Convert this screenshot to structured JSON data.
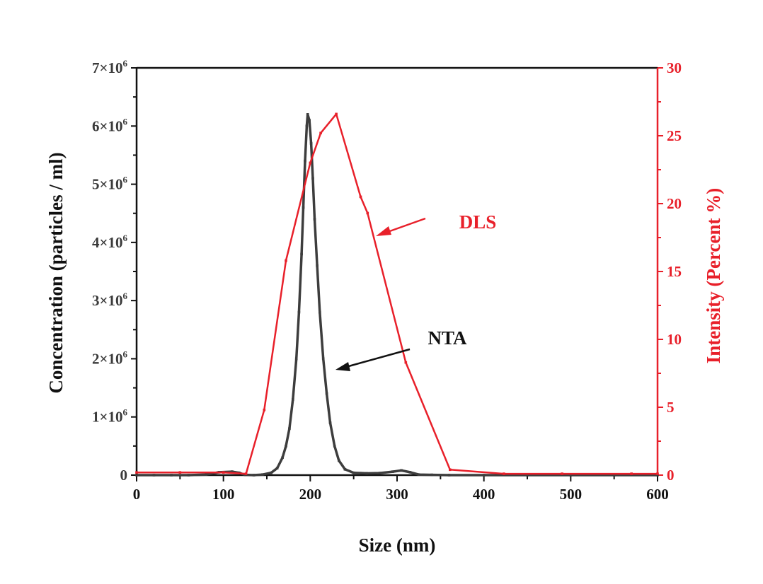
{
  "chart_data": {
    "type": "line",
    "title": "",
    "xlabel": "Size (nm)",
    "ylabel_left": "Concentration (particles / ml)",
    "ylabel_right": "Intensity (Percent %)",
    "xlim": [
      0,
      600
    ],
    "ylim_left": [
      0,
      7000000
    ],
    "ylim_right": [
      0,
      30
    ],
    "x_ticks": [
      "0",
      "100",
      "200",
      "300",
      "400",
      "500",
      "600"
    ],
    "y_left_ticks": [
      {
        "value": 0,
        "label": "0",
        "base": "",
        "exp": ""
      },
      {
        "value": 1000000,
        "label": "1×10^6",
        "base": "1×10",
        "exp": "6"
      },
      {
        "value": 2000000,
        "label": "2×10^6",
        "base": "2×10",
        "exp": "6"
      },
      {
        "value": 3000000,
        "label": "3×10^6",
        "base": "3×10",
        "exp": "6"
      },
      {
        "value": 4000000,
        "label": "4×10^6",
        "base": "4×10",
        "exp": "6"
      },
      {
        "value": 5000000,
        "label": "5×10^6",
        "base": "5×10",
        "exp": "6"
      },
      {
        "value": 6000000,
        "label": "6×10^6",
        "base": "6×10",
        "exp": "6"
      },
      {
        "value": 7000000,
        "label": "7×10^6",
        "base": "7×10",
        "exp": "6"
      }
    ],
    "y_right_ticks": [
      "0",
      "5",
      "10",
      "15",
      "20",
      "25",
      "30"
    ],
    "series": [
      {
        "name": "NTA",
        "axis": "left",
        "color": "#3d3d3d",
        "points": [
          [
            0,
            0
          ],
          [
            20,
            0
          ],
          [
            40,
            0
          ],
          [
            60,
            0
          ],
          [
            80,
            10000
          ],
          [
            95,
            50000
          ],
          [
            110,
            60000
          ],
          [
            118,
            40000
          ],
          [
            125,
            5000
          ],
          [
            135,
            0
          ],
          [
            145,
            10000
          ],
          [
            155,
            40000
          ],
          [
            162,
            120000
          ],
          [
            168,
            300000
          ],
          [
            172,
            500000
          ],
          [
            176,
            800000
          ],
          [
            180,
            1300000
          ],
          [
            184,
            2000000
          ],
          [
            187,
            2800000
          ],
          [
            190,
            3800000
          ],
          [
            192,
            4600000
          ],
          [
            194,
            5400000
          ],
          [
            196,
            6000000
          ],
          [
            197,
            6200000
          ],
          [
            199,
            6100000
          ],
          [
            201,
            5700000
          ],
          [
            203,
            5100000
          ],
          [
            205,
            4400000
          ],
          [
            208,
            3600000
          ],
          [
            211,
            2800000
          ],
          [
            215,
            2000000
          ],
          [
            219,
            1400000
          ],
          [
            223,
            900000
          ],
          [
            228,
            500000
          ],
          [
            233,
            250000
          ],
          [
            240,
            100000
          ],
          [
            250,
            40000
          ],
          [
            265,
            30000
          ],
          [
            280,
            35000
          ],
          [
            295,
            60000
          ],
          [
            305,
            80000
          ],
          [
            315,
            50000
          ],
          [
            325,
            10000
          ],
          [
            340,
            5000
          ],
          [
            360,
            0
          ],
          [
            400,
            0
          ],
          [
            450,
            0
          ],
          [
            500,
            0
          ],
          [
            550,
            0
          ],
          [
            600,
            0
          ]
        ]
      },
      {
        "name": "DLS",
        "axis": "right",
        "color": "#e8202a",
        "points": [
          [
            0,
            0.2
          ],
          [
            50,
            0.2
          ],
          [
            100,
            0.2
          ],
          [
            126,
            0.1
          ],
          [
            147,
            4.8
          ],
          [
            172,
            15.8
          ],
          [
            200,
            23.0
          ],
          [
            212,
            25.2
          ],
          [
            230,
            26.6
          ],
          [
            258,
            20.5
          ],
          [
            266,
            19.3
          ],
          [
            310,
            8.3
          ],
          [
            361,
            0.4
          ],
          [
            423,
            0.1
          ],
          [
            490,
            0.1
          ],
          [
            570,
            0.1
          ],
          [
            600,
            0.1
          ]
        ]
      }
    ],
    "annotations": [
      {
        "text": "DLS",
        "color": "#e8202a"
      },
      {
        "text": "NTA",
        "color": "#111111"
      }
    ]
  }
}
